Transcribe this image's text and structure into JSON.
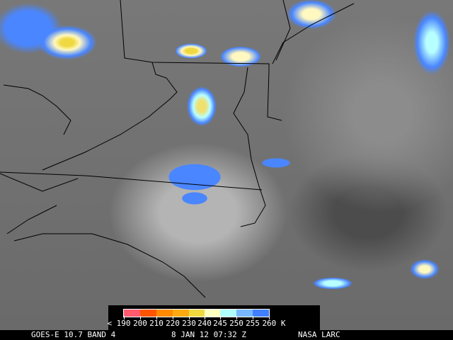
{
  "caption": {
    "satellite": "GOES-E 10.7 BAND 4",
    "datetime": "8 JAN 12 07:32 Z",
    "source": "NASA LARC"
  },
  "colorbar": {
    "unit": "K",
    "labels": [
      "< 190",
      "200",
      "210",
      "220",
      "230",
      "240",
      "245",
      "250",
      "255",
      "260 K"
    ],
    "colors": [
      "#ff5a6e",
      "#ff5500",
      "#ff8a00",
      "#ffaa10",
      "#f0d840",
      "#ffffc0",
      "#b0ffff",
      "#78b8ff",
      "#4080ff"
    ]
  }
}
